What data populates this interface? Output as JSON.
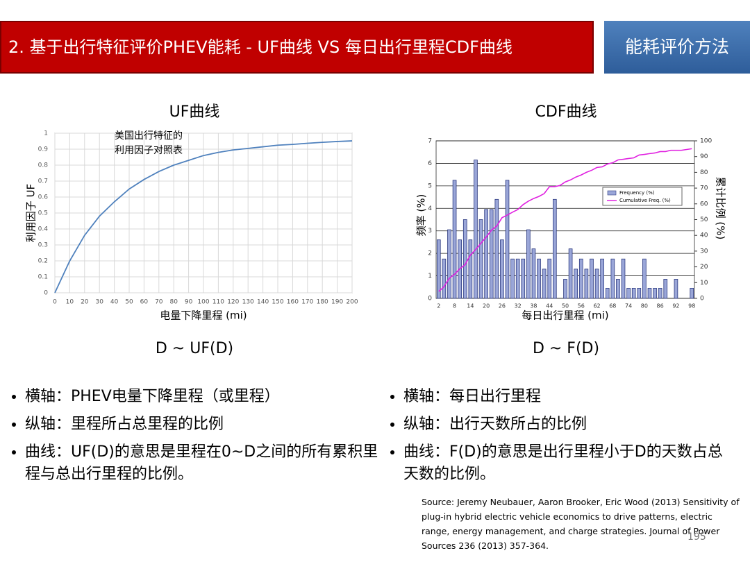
{
  "header": {
    "title": "2. 基于出行特征评价PHEV能耗 - UF曲线 VS 每日出行里程CDF曲线",
    "tab": "能耗评价方法"
  },
  "panels": [
    {
      "title": "UF曲线",
      "caption": "D ~ UF(D)"
    },
    {
      "title": "CDF曲线",
      "caption": "D ~ F(D)"
    }
  ],
  "chart_data": [
    {
      "type": "line",
      "x_label": "电量下降里程 (mi)",
      "y_label": "利用因子 UF",
      "annotation": [
        "美国出行特征的",
        "利用因子对照表"
      ],
      "x": [
        0,
        10,
        20,
        30,
        40,
        50,
        60,
        70,
        80,
        90,
        100,
        110,
        120,
        130,
        140,
        150,
        160,
        170,
        180,
        190,
        200
      ],
      "values": [
        0,
        0.2,
        0.36,
        0.48,
        0.57,
        0.65,
        0.71,
        0.76,
        0.8,
        0.83,
        0.86,
        0.88,
        0.895,
        0.905,
        0.915,
        0.925,
        0.93,
        0.937,
        0.943,
        0.948,
        0.952
      ],
      "color": "#4f81bd",
      "grid": true,
      "xlim": [
        0,
        200
      ],
      "xticks": [
        0,
        10,
        20,
        30,
        40,
        50,
        60,
        70,
        80,
        90,
        100,
        110,
        120,
        130,
        140,
        150,
        160,
        170,
        180,
        190,
        200
      ],
      "ylim": [
        0,
        1
      ],
      "yticks": [
        0,
        0.1,
        0.2,
        0.3,
        0.4,
        0.5,
        0.6,
        0.7,
        0.8,
        0.9,
        1
      ]
    },
    {
      "type": "bar",
      "x_label": "每日出行里程 (mi)",
      "y_label": "频率 (%)",
      "y2_label": "累计比例 (%)",
      "grid": true,
      "categories": [
        2,
        null,
        null,
        8,
        null,
        null,
        14,
        null,
        null,
        20,
        null,
        null,
        26,
        null,
        null,
        32,
        null,
        null,
        38,
        null,
        null,
        44,
        null,
        null,
        50,
        null,
        null,
        56,
        null,
        null,
        62,
        null,
        null,
        68,
        null,
        null,
        74,
        null,
        null,
        80,
        null,
        null,
        86,
        null,
        null,
        92,
        null,
        null,
        98
      ],
      "series": [
        {
          "name": "Frequency (%)",
          "color": "#9aa6d8",
          "values": [
            2.6,
            1.75,
            3.05,
            5.25,
            2.6,
            3.5,
            2.6,
            6.15,
            3.5,
            3.95,
            3.95,
            4.4,
            2.6,
            5.25,
            1.75,
            1.75,
            1.75,
            3.05,
            2.2,
            1.75,
            1.3,
            1.75,
            4.4,
            0,
            0.85,
            2.2,
            1.3,
            1.75,
            1.3,
            1.75,
            1.3,
            1.75,
            0.45,
            1.75,
            0.85,
            1.75,
            0.45,
            0.45,
            0.45,
            1.75,
            0.45,
            0.45,
            0.45,
            0.85,
            0,
            0.85,
            0,
            0,
            0.45
          ]
        },
        {
          "name": "Cumulative Freq. (%)",
          "color": "#e020e0",
          "axis": "y2",
          "values": [
            4.4,
            7.4,
            12.7,
            15.3,
            18.8,
            21.4,
            27.5,
            31,
            35,
            38.9,
            43.3,
            45.9,
            51.2,
            52.9,
            54.7,
            56.4,
            59.5,
            61.7,
            63.4,
            64.7,
            66.5,
            70.9,
            70.9,
            71.7,
            73.9,
            75.2,
            77,
            78.3,
            80,
            81.3,
            83.1,
            83.5,
            85.3,
            86.1,
            87.9,
            88.3,
            88.8,
            89.2,
            91,
            91.4,
            91.9,
            92.3,
            93.2,
            93.2,
            94,
            94,
            94,
            94.5,
            95
          ]
        }
      ],
      "ylim": [
        0,
        7
      ],
      "yticks": [
        0,
        1,
        2,
        3,
        4,
        5,
        6,
        7
      ],
      "y2lim": [
        0,
        100
      ],
      "y2ticks": [
        0,
        10,
        20,
        30,
        40,
        50,
        60,
        70,
        80,
        90,
        100
      ]
    }
  ],
  "bullets_left": [
    "横轴：PHEV电量下降里程（或里程）",
    "纵轴：里程所占总里程的比例",
    "曲线：UF(D)的意思是里程在0~D之间的所有累积里程与总出行里程的比例。"
  ],
  "bullets_right": [
    "横轴：每日出行里程",
    "纵轴：出行天数所占的比例",
    "曲线：F(D)的意思是出行里程小于D的天数占总天数的比例。"
  ],
  "source": "Source: Jeremy Neubauer, Aaron Brooker, Eric Wood (2013) Sensitivity of plug-in hybrid electric vehicle economics to drive patterns, electric range, energy management, and charge strategies. Journal of Power Sources 236 (2013) 357-364.",
  "page_number": "195"
}
